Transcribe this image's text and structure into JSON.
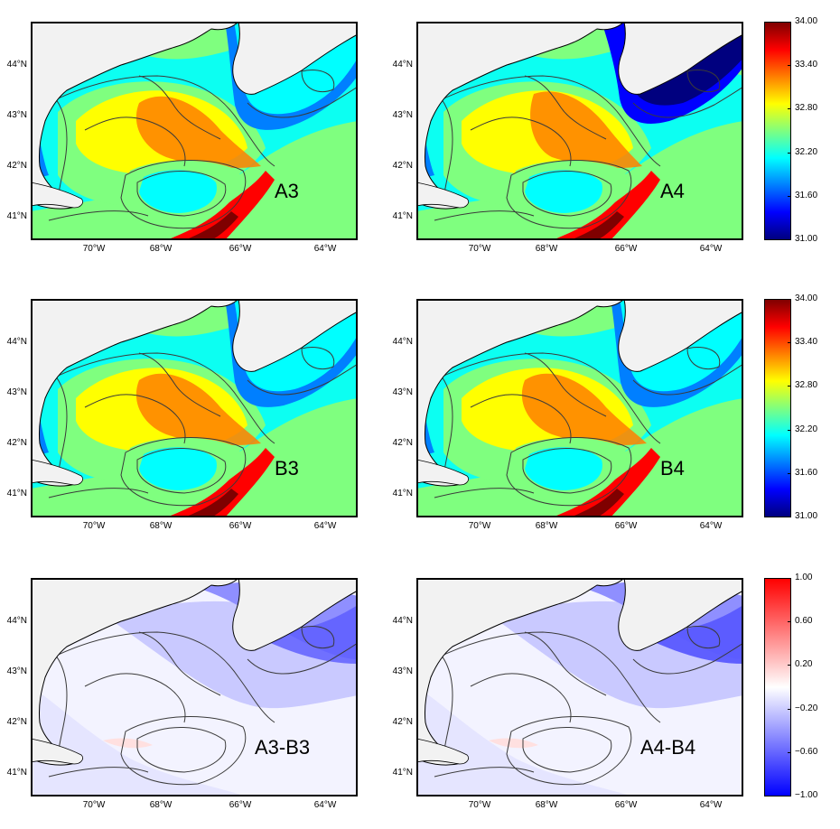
{
  "panels": [
    {
      "id": "A3",
      "label": "A3",
      "kind": "salinity"
    },
    {
      "id": "A4",
      "label": "A4",
      "kind": "salinity"
    },
    {
      "id": "B3",
      "label": "B3",
      "kind": "salinity"
    },
    {
      "id": "B4",
      "label": "B4",
      "kind": "salinity"
    },
    {
      "id": "A3-B3",
      "label": "A3-B3",
      "kind": "diff"
    },
    {
      "id": "A4-B4",
      "label": "A4-B4",
      "kind": "diff"
    }
  ],
  "axes": {
    "lat_labels": [
      "44°N",
      "43°N",
      "42°N",
      "41°N"
    ],
    "lon_labels": [
      "70°W",
      "68°W",
      "66°W",
      "64°W"
    ]
  },
  "colorbars": [
    {
      "id": "salinity-1",
      "ticks": [
        "34.00",
        "33.40",
        "32.80",
        "32.20",
        "31.60",
        "31.00"
      ]
    },
    {
      "id": "salinity-2",
      "ticks": [
        "34.00",
        "33.40",
        "32.80",
        "32.20",
        "31.60",
        "31.00"
      ]
    },
    {
      "id": "difference",
      "ticks": [
        "1.00",
        "0.60",
        "0.20",
        "−0.20",
        "−0.60",
        "−1.00"
      ]
    }
  ],
  "colors": {
    "land": "#f2f2f2",
    "contour": "#3a3a3a",
    "jet": [
      "#00007f",
      "#0000ff",
      "#007fff",
      "#00ffff",
      "#7fff7f",
      "#ffff00",
      "#ff7f00",
      "#ff0000",
      "#7f0000"
    ],
    "diff": [
      "#0000ff",
      "#ffffff",
      "#ff0000"
    ]
  }
}
